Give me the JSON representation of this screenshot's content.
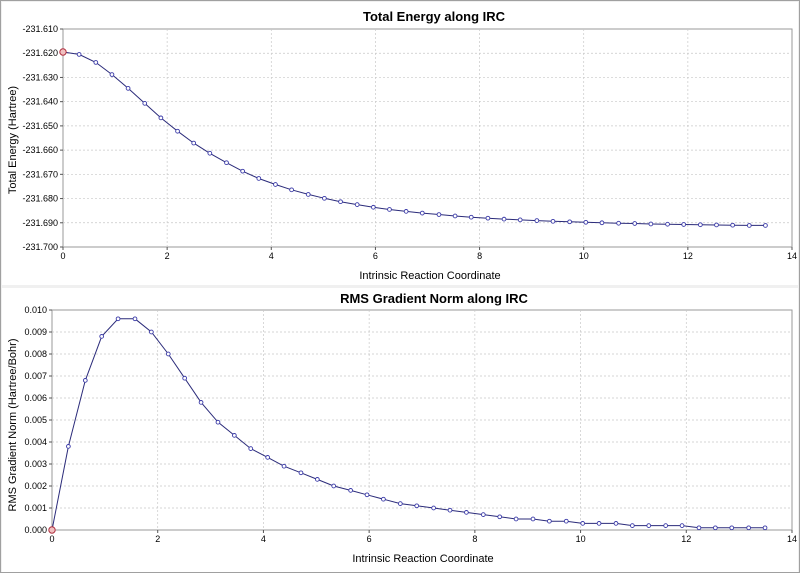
{
  "chart_data": [
    {
      "type": "line",
      "title": "Total Energy along IRC",
      "xlabel": "Intrinsic Reaction Coordinate",
      "ylabel": "Total Energy (Hartree)",
      "xlim": [
        0,
        14
      ],
      "ylim": [
        -231.7,
        -231.61
      ],
      "x_ticks": [
        "0",
        "2",
        "4",
        "6",
        "8",
        "10",
        "12",
        "14"
      ],
      "y_ticks": [
        "-231.610",
        "-231.620",
        "-231.630",
        "-231.640",
        "-231.650",
        "-231.660",
        "-231.670",
        "-231.680",
        "-231.690",
        "-231.700"
      ],
      "grid": true,
      "series": [
        {
          "x": [
            0,
            0.31,
            0.63,
            0.94,
            1.25,
            1.57,
            1.88,
            2.2,
            2.51,
            2.82,
            3.14,
            3.45,
            3.76,
            4.08,
            4.39,
            4.71,
            5.02,
            5.33,
            5.65,
            5.96,
            6.27,
            6.59,
            6.9,
            7.22,
            7.53,
            7.84,
            8.16,
            8.47,
            8.78,
            9.1,
            9.41,
            9.73,
            10.04,
            10.35,
            10.67,
            10.98,
            11.29,
            11.61,
            11.92,
            12.24,
            12.55,
            12.86,
            13.18,
            13.49
          ],
          "y": [
            -231.6195,
            -231.6205,
            -231.6238,
            -231.6288,
            -231.6345,
            -231.6407,
            -231.6467,
            -231.6522,
            -231.6571,
            -231.6613,
            -231.6652,
            -231.6687,
            -231.6717,
            -231.6742,
            -231.6764,
            -231.6783,
            -231.6799,
            -231.6813,
            -231.6825,
            -231.6836,
            -231.6845,
            -231.6853,
            -231.686,
            -231.6866,
            -231.6872,
            -231.6877,
            -231.6881,
            -231.6885,
            -231.6888,
            -231.6891,
            -231.6894,
            -231.6896,
            -231.6898,
            -231.69,
            -231.6902,
            -231.6903,
            -231.6905,
            -231.6906,
            -231.6907,
            -231.6908,
            -231.6909,
            -231.691,
            -231.6911,
            -231.6911
          ]
        }
      ]
    },
    {
      "type": "line",
      "title": "RMS Gradient Norm along IRC",
      "xlabel": "Intrinsic Reaction Coordinate",
      "ylabel": "RMS Gradient Norm (Hartree/Bohr)",
      "xlim": [
        0,
        14
      ],
      "ylim": [
        0,
        0.01
      ],
      "x_ticks": [
        "0",
        "2",
        "4",
        "6",
        "8",
        "10",
        "12",
        "14"
      ],
      "y_ticks": [
        "0.000",
        "0.001",
        "0.002",
        "0.003",
        "0.004",
        "0.005",
        "0.006",
        "0.007",
        "0.008",
        "0.009",
        "0.010"
      ],
      "grid": true,
      "series": [
        {
          "x": [
            0,
            0.31,
            0.63,
            0.94,
            1.25,
            1.57,
            1.88,
            2.2,
            2.51,
            2.82,
            3.14,
            3.45,
            3.76,
            4.08,
            4.39,
            4.71,
            5.02,
            5.33,
            5.65,
            5.96,
            6.27,
            6.59,
            6.9,
            7.22,
            7.53,
            7.84,
            8.16,
            8.47,
            8.78,
            9.1,
            9.41,
            9.73,
            10.04,
            10.35,
            10.67,
            10.98,
            11.29,
            11.61,
            11.92,
            12.24,
            12.55,
            12.86,
            13.18,
            13.49
          ],
          "y": [
            0.0,
            0.0038,
            0.0068,
            0.0088,
            0.0096,
            0.0096,
            0.009,
            0.008,
            0.0069,
            0.0058,
            0.0049,
            0.0043,
            0.0037,
            0.0033,
            0.0029,
            0.0026,
            0.0023,
            0.002,
            0.0018,
            0.0016,
            0.0014,
            0.0012,
            0.0011,
            0.001,
            0.0009,
            0.0008,
            0.0007,
            0.0006,
            0.0005,
            0.0005,
            0.0004,
            0.0004,
            0.0003,
            0.0003,
            0.0003,
            0.0002,
            0.0002,
            0.0002,
            0.0002,
            0.0001,
            0.0001,
            0.0001,
            0.0001,
            0.0001
          ]
        }
      ]
    }
  ]
}
